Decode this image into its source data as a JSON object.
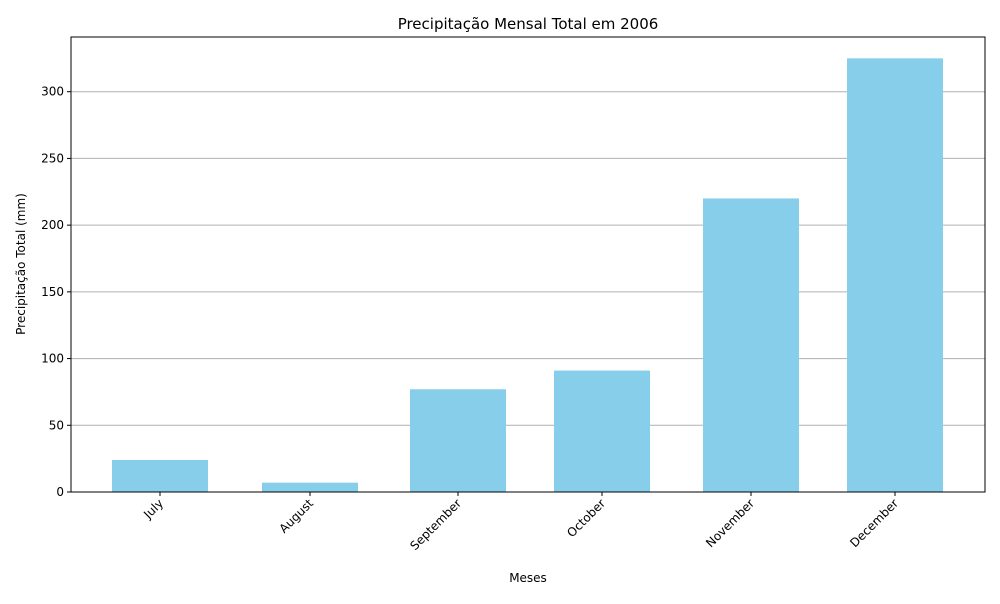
{
  "chart_data": {
    "type": "bar",
    "title": "Precipitação Mensal Total em 2006",
    "xlabel": "Meses",
    "ylabel": "Precipitação Total (mm)",
    "categories": [
      "July",
      "August",
      "September",
      "October",
      "November",
      "December"
    ],
    "values": [
      24,
      7,
      77,
      91,
      220,
      325
    ],
    "ylim": [
      0,
      341
    ],
    "yticks": [
      0,
      50,
      100,
      150,
      200,
      250,
      300
    ],
    "grid": "y-major",
    "bar_color": "#87CEEB",
    "x_tick_rotation_deg": 45
  }
}
